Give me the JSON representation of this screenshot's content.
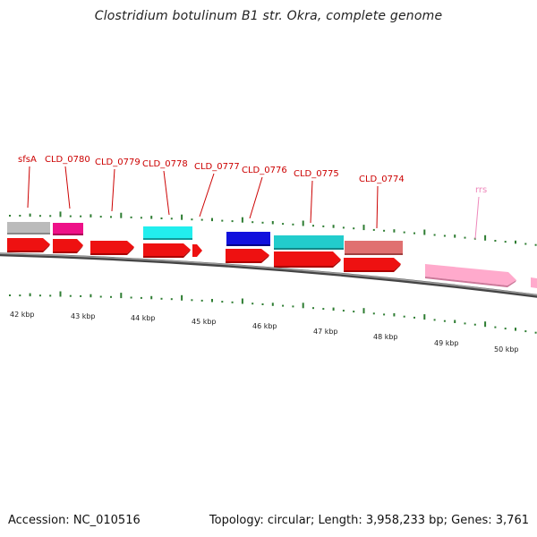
{
  "title": "Clostridium botulinum B1 str. Okra, complete genome",
  "footer": {
    "accession": "Accession: NC_010516",
    "stats": "Topology: circular; Length: 3,958,233 bp; Genes: 3,761"
  },
  "colors": {
    "backbone": "#777777",
    "gc_tick": "#2e7d32",
    "label_text": "#cc0000",
    "label_line": "#cc0000",
    "label_faded": "#ee88bb"
  },
  "scale_labels": [
    "42 kbp",
    "43 kbp",
    "44 kbp",
    "45 kbp",
    "46 kbp",
    "47 kbp",
    "48 kbp",
    "49 kbp",
    "50 kbp"
  ],
  "gene_labels": [
    {
      "text": "sfsA",
      "faded": false
    },
    {
      "text": "CLD_0780",
      "faded": false
    },
    {
      "text": "CLD_0779",
      "faded": false
    },
    {
      "text": "CLD_0778",
      "faded": false
    },
    {
      "text": "CLD_0777",
      "faded": false
    },
    {
      "text": "CLD_0776",
      "faded": false
    },
    {
      "text": "CLD_0775",
      "faded": false
    },
    {
      "text": "CLD_0774",
      "faded": false
    },
    {
      "text": "rrs",
      "faded": true
    }
  ],
  "feature_colors": {
    "top": [
      "#bbbbbb",
      "#ee1188",
      "#22eeee",
      "#1111dd",
      "#22cccc",
      "#e07070"
    ],
    "bottom_cds": "#ee1111",
    "rrna": "#ffaacc"
  }
}
